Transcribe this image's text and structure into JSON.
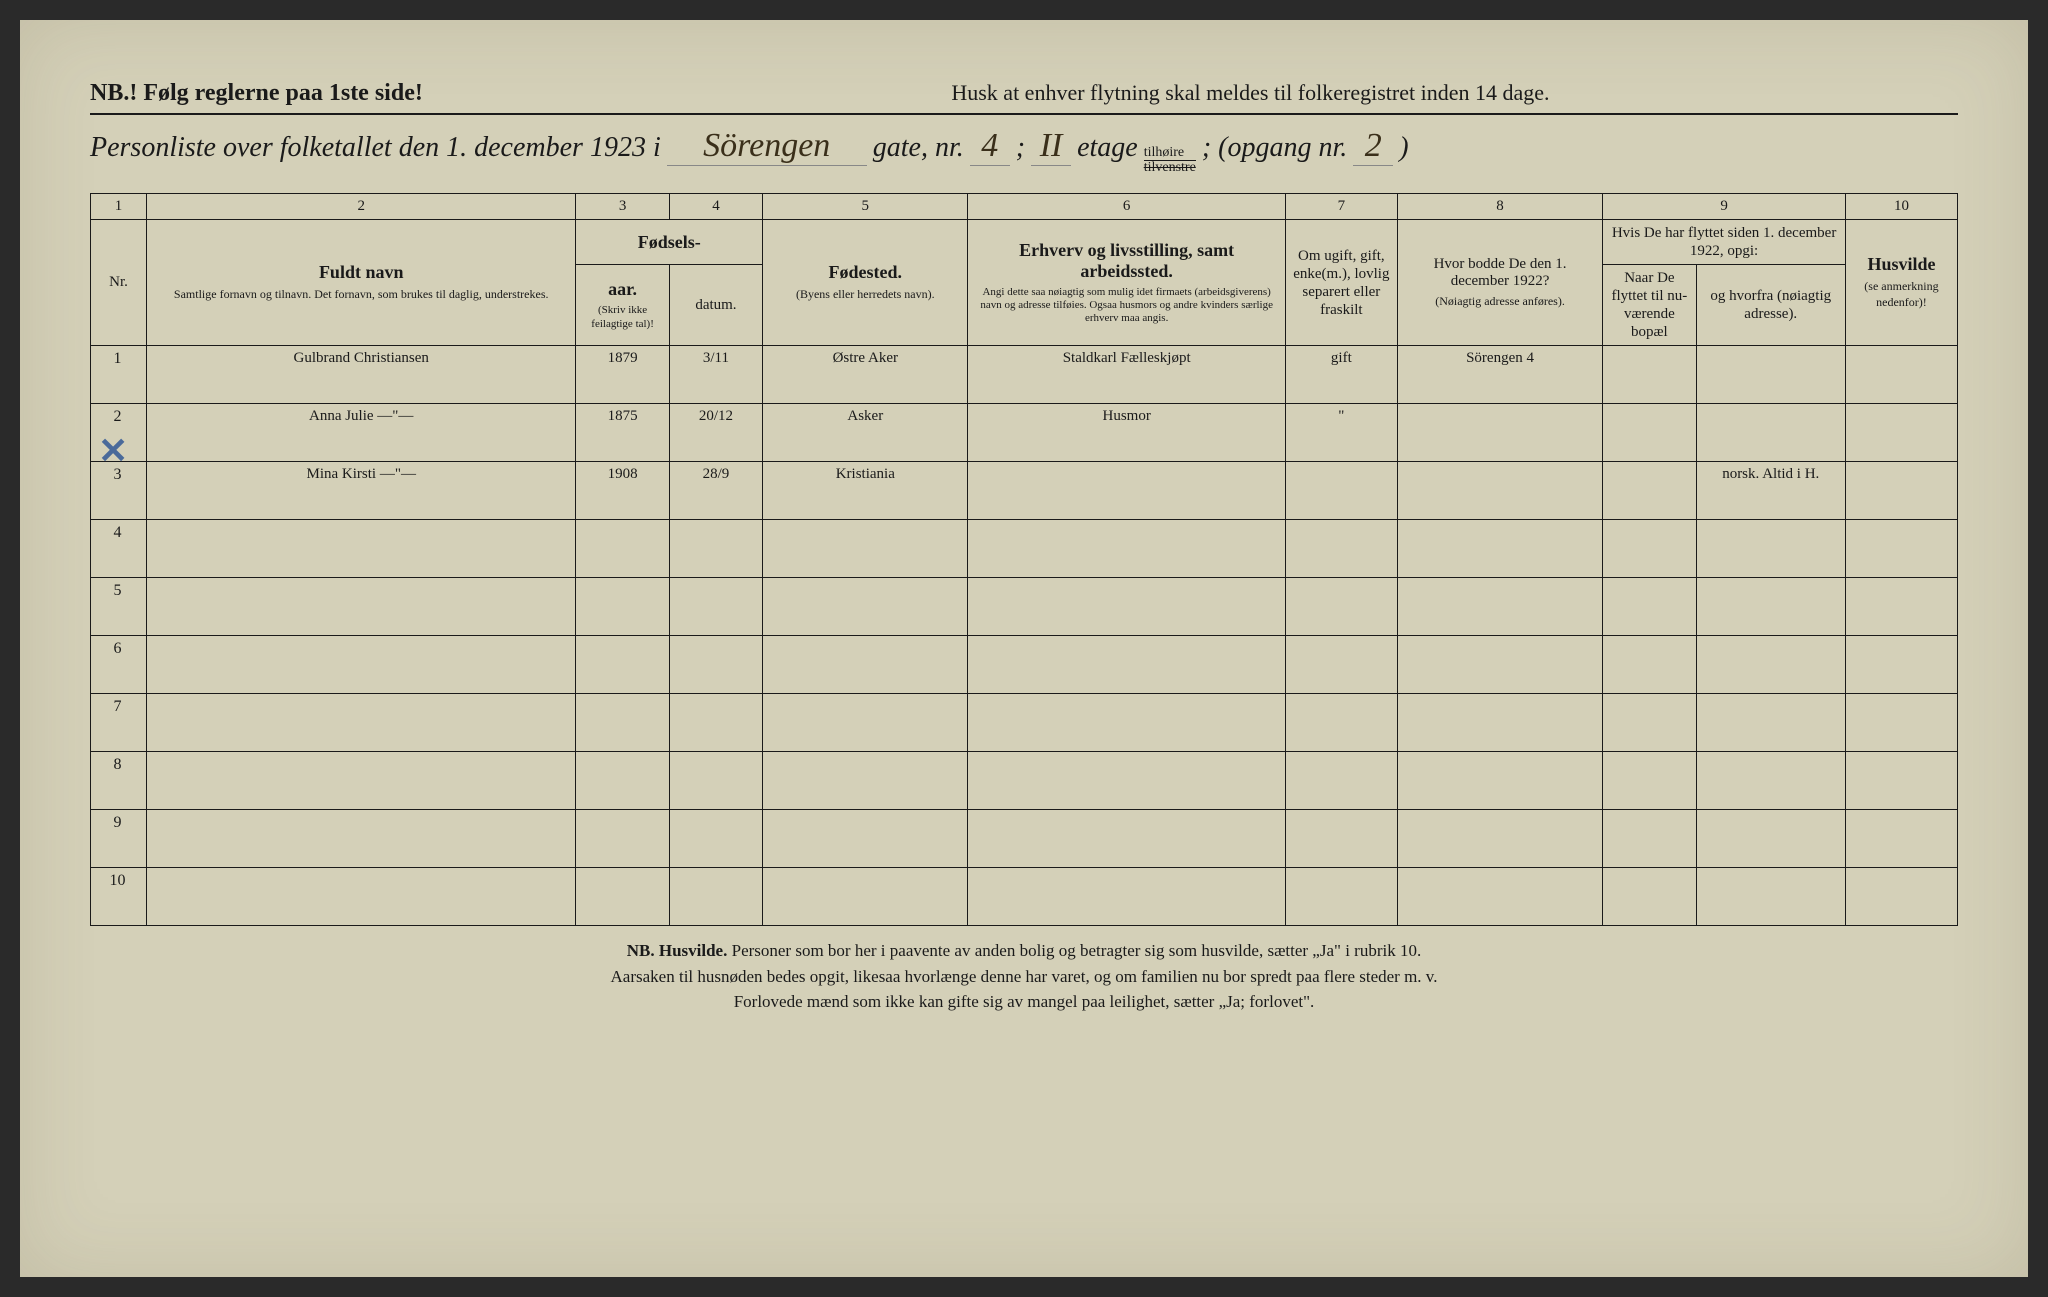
{
  "header": {
    "nb": "NB.! Følg reglerne paa 1ste side!",
    "husk": "Husk at enhver flytning skal meldes til folkeregistret inden 14 dage.",
    "title_prefix": "Personliste over folketallet den 1. december 1923 i",
    "street": "Sörengen",
    "gate_label": "gate, nr.",
    "gate_nr": "4",
    "semicolon": ";",
    "etage_val": "II",
    "etage_label": "etage",
    "etage_top": "tilhøire",
    "etage_bot": "tilvenstre",
    "opgang_label": "; (opgang nr.",
    "opgang_nr": "2",
    "close": ")"
  },
  "colnums": [
    "1",
    "2",
    "3",
    "4",
    "5",
    "6",
    "7",
    "8",
    "9",
    "10"
  ],
  "headers": {
    "nr": "Nr.",
    "navn": "Fuldt navn",
    "navn_sub": "Samtlige fornavn og tilnavn. Det fornavn, som brukes til daglig, understrekes.",
    "fodsel": "Fødsels-",
    "aar": "aar.",
    "datum": "datum.",
    "aar_sub": "(Skriv ikke feilagtige tal)!",
    "fodested": "Fødested.",
    "fodested_sub": "(Byens eller herredets navn).",
    "erhverv": "Erhverv og livsstilling, samt arbeidssted.",
    "erhverv_sub": "Angi dette saa nøiagtig som mulig idet firmaets (arbeidsgiverens) navn og adresse tilføies. Ogsaa husmors og andre kvinders særlige erhverv maa angis.",
    "sivil": "Om ugift, gift, enke(m.), lovlig separert eller fraskilt",
    "bodde": "Hvor bodde De den 1. december 1922?",
    "bodde_sub": "(Nøiagtig adresse anføres).",
    "flyttet": "Hvis De har flyttet siden 1. december 1922, opgi:",
    "naar": "Naar De flyttet til nu-værende bopæl",
    "hvorfra": "og hvorfra (nøiagtig adresse).",
    "husvilde": "Husvilde",
    "husvilde_sub": "(se anmerkning nedenfor)!"
  },
  "rows": [
    {
      "nr": "1",
      "navn": "Gulbrand Christiansen",
      "aar": "1879",
      "datum": "3/11",
      "fodested": "Østre Aker",
      "erhverv": "Staldkarl Fælleskjøpt",
      "sivil": "gift",
      "bodde": "Sörengen 4",
      "naar": "",
      "hvorfra": "",
      "husv": ""
    },
    {
      "nr": "2",
      "navn": "Anna Julie  —\"—",
      "aar": "1875",
      "datum": "20/12",
      "fodested": "Asker",
      "erhverv": "Husmor",
      "sivil": "\"",
      "bodde": "",
      "naar": "",
      "hvorfra": "",
      "husv": ""
    },
    {
      "nr": "3",
      "navn": "Mina Kirsti  —\"—",
      "aar": "1908",
      "datum": "28/9",
      "fodested": "Kristiania",
      "erhverv": "",
      "sivil": "",
      "bodde": "",
      "naar": "",
      "hvorfra": "norsk. Altid i H.",
      "husv": ""
    }
  ],
  "empty_rows": [
    "4",
    "5",
    "6",
    "7",
    "8",
    "9",
    "10"
  ],
  "footnote": {
    "nb": "NB. Husvilde.",
    "l1": "Personer som bor her i paavente av anden bolig og betragter sig som husvilde, sætter „Ja\" i rubrik 10.",
    "l2": "Aarsaken til husnøden bedes opgit, likesaa hvorlænge denne har varet, og om familien nu bor spredt paa flere steder m. v.",
    "l3": "Forlovede mænd som ikke kan gifte sig av mangel paa leilighet, sætter „Ja; forlovet\"."
  },
  "style": {
    "paper_bg": "#d4d0b8",
    "ink": "#1a1a1a",
    "hand_ink": "#2a2010",
    "red_ink": "#c0453a",
    "blue_ink": "#4a6a9a",
    "col_widths_pct": [
      3,
      23,
      5,
      5,
      11,
      17,
      6,
      11,
      5,
      8,
      6
    ]
  }
}
